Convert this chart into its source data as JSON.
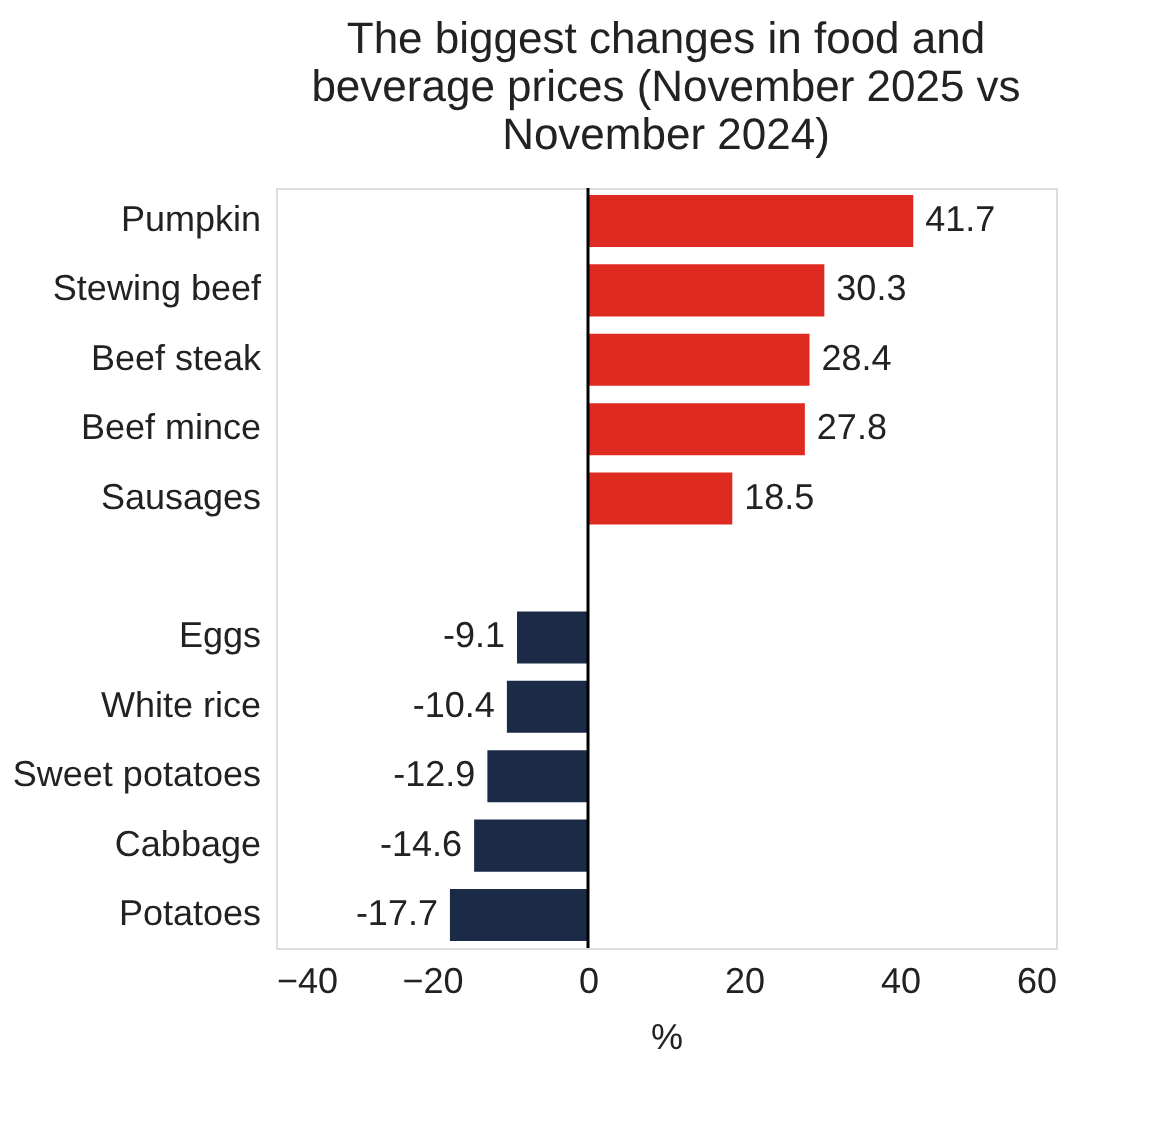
{
  "chart_data": {
    "type": "bar",
    "orientation": "horizontal",
    "title": "The biggest changes in food and beverage prices (November 2025 vs November 2024)",
    "xlabel": "%",
    "categories": [
      "Pumpkin",
      "Stewing beef",
      "Beef steak",
      "Beef mince",
      "Sausages",
      null,
      "Eggs",
      "White rice",
      "Sweet potatoes",
      "Cabbage",
      "Potatoes"
    ],
    "values": [
      41.7,
      30.3,
      28.4,
      27.8,
      18.5,
      null,
      -9.1,
      -10.4,
      -12.9,
      -14.6,
      -17.7
    ],
    "colors": [
      "#de2a21",
      "#de2a21",
      "#de2a21",
      "#de2a21",
      "#de2a21",
      null,
      "#1b2a47",
      "#1b2a47",
      "#1b2a47",
      "#1b2a47",
      "#1b2a47"
    ],
    "xlim": [
      -40,
      60
    ],
    "xticks": [
      -40,
      -20,
      0,
      20,
      40,
      60
    ],
    "ref_lines": [
      {
        "axis": "x",
        "value": 0,
        "color": "#000000"
      }
    ],
    "data_labels": true,
    "grid": false
  }
}
